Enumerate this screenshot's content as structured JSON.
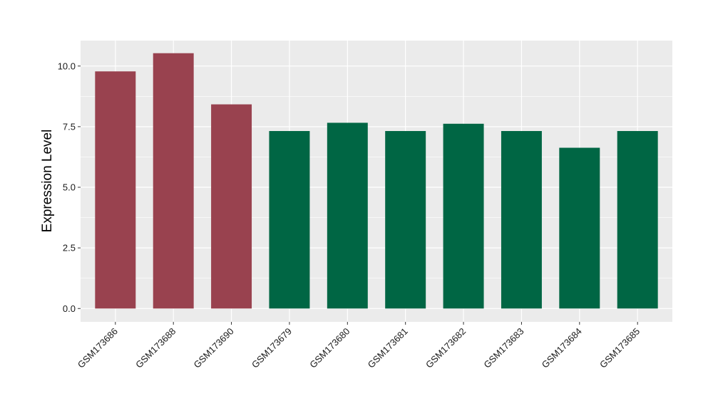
{
  "chart_data": {
    "type": "bar",
    "title": "",
    "xlabel": "",
    "ylabel": "Expression Level",
    "categories": [
      "GSM173686",
      "GSM173688",
      "GSM173690",
      "GSM173679",
      "GSM173680",
      "GSM173681",
      "GSM173682",
      "GSM173683",
      "GSM173684",
      "GSM173685"
    ],
    "values": [
      9.78,
      10.53,
      8.42,
      7.32,
      7.66,
      7.32,
      7.62,
      7.32,
      6.63,
      7.32
    ],
    "bar_colors": [
      "#99424f",
      "#99424f",
      "#99424f",
      "#006644",
      "#006644",
      "#006644",
      "#006644",
      "#006644",
      "#006644",
      "#006644"
    ],
    "ylim": [
      -0.55,
      11.05
    ],
    "yticks": [
      0.0,
      2.5,
      5.0,
      7.5,
      10.0
    ],
    "ytick_labels": [
      "0.0",
      "2.5",
      "5.0",
      "7.5",
      "10.0"
    ],
    "grid": true,
    "legend": "none",
    "panel_background": "#ebebeb",
    "gridline_color": "#ffffff"
  }
}
